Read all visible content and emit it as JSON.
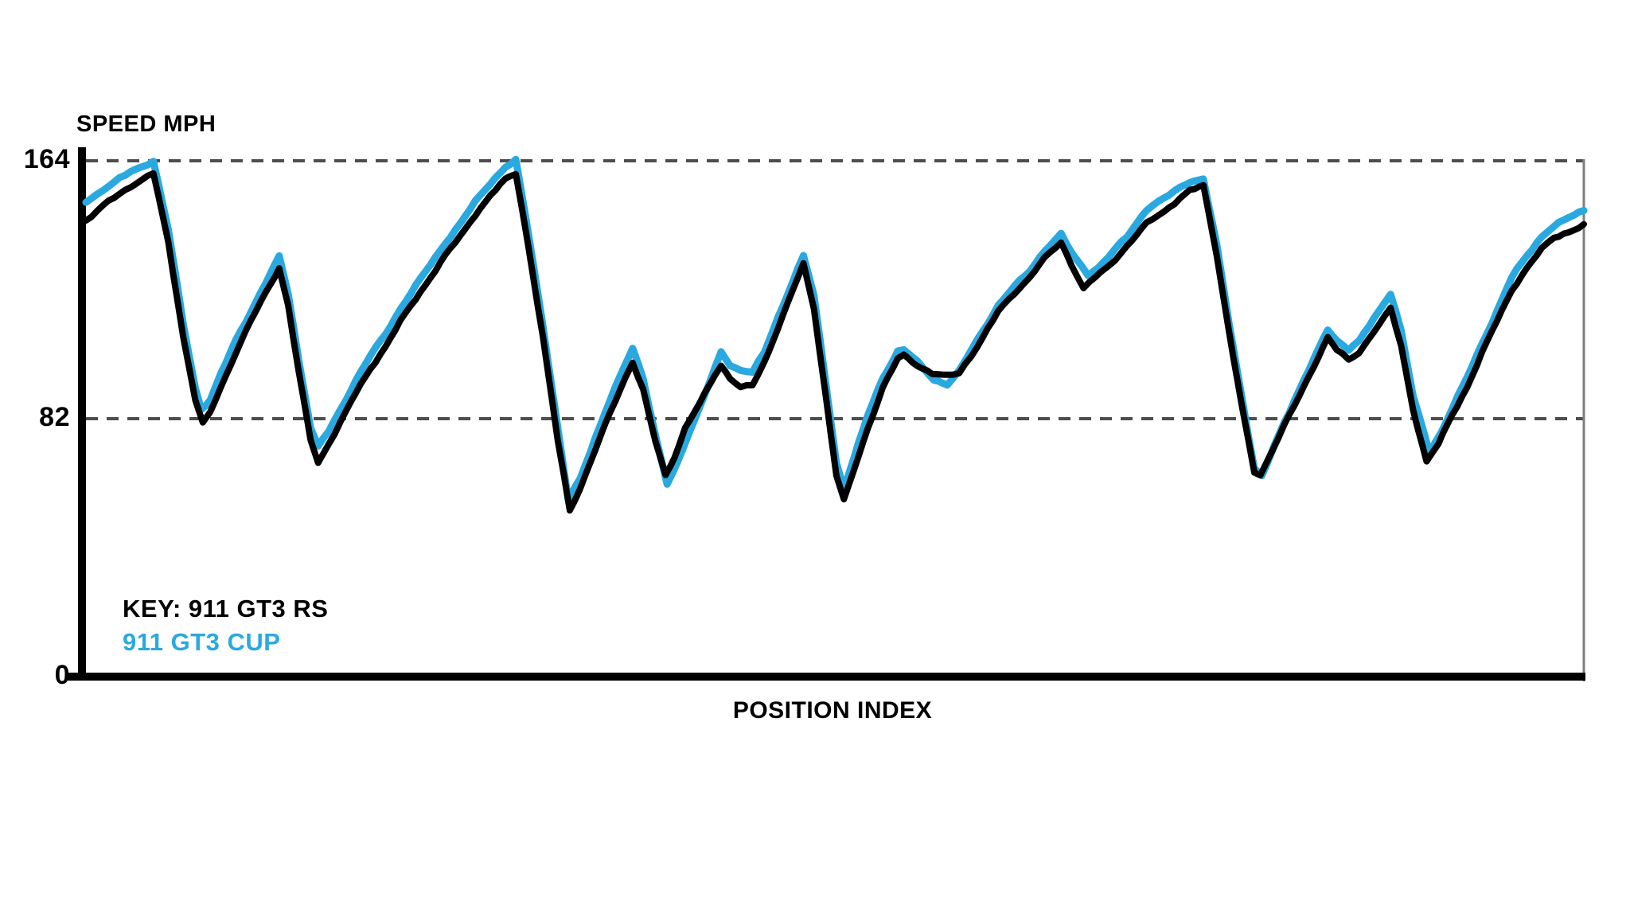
{
  "page": {
    "background": "#ffffff"
  },
  "chart_data": {
    "type": "line",
    "title": "SPEED MPH",
    "ylabel": "SPEED MPH",
    "xlabel": "POSITION INDEX",
    "xlim": [
      0,
      100
    ],
    "ylim": [
      0,
      164
    ],
    "grid": "horizontal dashed gridlines at y=82 and y=164, none vertical",
    "gridline_color": "#4d4d4d",
    "axis_color": "#000000",
    "right_border_color": "#7f7f7f",
    "yticks": [
      {
        "value": 164,
        "label": "164",
        "gridline": true
      },
      {
        "value": 82,
        "label": "82",
        "gridline": true
      },
      {
        "value": 0,
        "label": "0",
        "gridline": false
      }
    ],
    "legend": {
      "position": "inside-bottom-left",
      "line1": "KEY: 911 GT3 RS",
      "line1_color": "#000000",
      "line2": "911 GT3 CUP",
      "line2_color": "#29a9e0"
    },
    "series": [
      {
        "name": "911 GT3 CUP",
        "color": "#29a9e0",
        "width": 9,
        "points": [
          [
            0,
            151
          ],
          [
            1.5,
            156
          ],
          [
            3,
            160.5
          ],
          [
            4.5,
            164
          ],
          [
            5.5,
            142
          ],
          [
            6.5,
            112
          ],
          [
            7.3,
            92
          ],
          [
            7.7,
            85
          ],
          [
            8.3,
            88
          ],
          [
            9,
            96
          ],
          [
            10,
            107
          ],
          [
            11,
            116
          ],
          [
            12,
            125
          ],
          [
            12.9,
            133.5
          ],
          [
            13.5,
            122
          ],
          [
            14.2,
            101
          ],
          [
            15,
            79
          ],
          [
            15.5,
            73
          ],
          [
            16.2,
            78
          ],
          [
            17,
            85
          ],
          [
            18,
            94
          ],
          [
            19,
            102
          ],
          [
            20,
            109
          ],
          [
            21,
            117
          ],
          [
            22,
            124
          ],
          [
            23,
            131
          ],
          [
            24,
            138
          ],
          [
            25,
            144
          ],
          [
            26,
            151
          ],
          [
            27,
            157
          ],
          [
            28,
            162
          ],
          [
            28.7,
            164
          ],
          [
            29.5,
            142
          ],
          [
            30.5,
            112
          ],
          [
            31.5,
            79
          ],
          [
            32.2,
            56
          ],
          [
            33,
            63
          ],
          [
            34,
            76
          ],
          [
            35,
            88
          ],
          [
            36,
            99
          ],
          [
            36.5,
            104.5
          ],
          [
            37.2,
            95
          ],
          [
            38,
            77
          ],
          [
            38.8,
            61
          ],
          [
            39.5,
            68
          ],
          [
            40.2,
            77
          ],
          [
            41,
            86
          ],
          [
            42,
            98
          ],
          [
            42.4,
            103
          ],
          [
            43,
            99
          ],
          [
            43.7,
            97.5
          ],
          [
            44.5,
            97
          ],
          [
            45.3,
            103
          ],
          [
            46.2,
            114
          ],
          [
            47.2,
            126
          ],
          [
            47.9,
            134
          ],
          [
            48.6,
            121
          ],
          [
            49.4,
            93
          ],
          [
            50.1,
            68
          ],
          [
            50.6,
            60
          ],
          [
            51.3,
            70
          ],
          [
            52.2,
            83
          ],
          [
            53.2,
            95
          ],
          [
            54.2,
            103.5
          ],
          [
            54.6,
            104
          ],
          [
            55.5,
            100
          ],
          [
            56.6,
            94.5
          ],
          [
            57.5,
            93
          ],
          [
            58.3,
            97
          ],
          [
            59.5,
            107
          ],
          [
            60.9,
            118
          ],
          [
            62,
            124
          ],
          [
            63,
            129
          ],
          [
            64,
            135.5
          ],
          [
            65.1,
            140.5
          ],
          [
            65.9,
            134
          ],
          [
            66.9,
            128
          ],
          [
            67.6,
            130
          ],
          [
            68.3,
            133.5
          ],
          [
            69.5,
            140
          ],
          [
            70.8,
            148.5
          ],
          [
            72,
            152
          ],
          [
            73,
            155.5
          ],
          [
            73.7,
            157.5
          ],
          [
            74.6,
            158
          ],
          [
            75.5,
            137
          ],
          [
            76.3,
            113
          ],
          [
            77.2,
            88
          ],
          [
            78,
            66
          ],
          [
            78.5,
            63.5
          ],
          [
            79.3,
            73
          ],
          [
            80,
            81
          ],
          [
            81,
            91
          ],
          [
            82,
            101
          ],
          [
            82.9,
            110.5
          ],
          [
            83.5,
            107
          ],
          [
            84.3,
            104
          ],
          [
            85,
            106.5
          ],
          [
            86,
            114
          ],
          [
            87.1,
            122
          ],
          [
            87.8,
            110
          ],
          [
            88.6,
            89
          ],
          [
            89.7,
            71.5
          ],
          [
            90.5,
            78
          ],
          [
            91.3,
            86
          ],
          [
            92.2,
            95
          ],
          [
            93.2,
            106
          ],
          [
            94.2,
            116
          ],
          [
            95.2,
            127
          ],
          [
            96.2,
            134
          ],
          [
            97.2,
            140
          ],
          [
            98,
            143
          ],
          [
            99,
            146
          ],
          [
            100,
            148.5
          ]
        ]
      },
      {
        "name": "911 GT3 RS",
        "color": "#000000",
        "width": 8,
        "points": [
          [
            0,
            145
          ],
          [
            1.5,
            151
          ],
          [
            3,
            156
          ],
          [
            4.5,
            160
          ],
          [
            5.5,
            138
          ],
          [
            6.5,
            108
          ],
          [
            7.3,
            88
          ],
          [
            7.8,
            80.5
          ],
          [
            8.3,
            84
          ],
          [
            9,
            92
          ],
          [
            10,
            103
          ],
          [
            11,
            113
          ],
          [
            12,
            122
          ],
          [
            12.9,
            130
          ],
          [
            13.5,
            118
          ],
          [
            14.2,
            97
          ],
          [
            15,
            75
          ],
          [
            15.5,
            68
          ],
          [
            16.2,
            74
          ],
          [
            17,
            81
          ],
          [
            18,
            90
          ],
          [
            19,
            98
          ],
          [
            20,
            105
          ],
          [
            21,
            113
          ],
          [
            22,
            120
          ],
          [
            23,
            127
          ],
          [
            24,
            134
          ],
          [
            25,
            140
          ],
          [
            26,
            147
          ],
          [
            27,
            153
          ],
          [
            28,
            158
          ],
          [
            28.7,
            160
          ],
          [
            29.5,
            138
          ],
          [
            30.5,
            108
          ],
          [
            31.5,
            75
          ],
          [
            32.3,
            53
          ],
          [
            33,
            60
          ],
          [
            34,
            72
          ],
          [
            35,
            84
          ],
          [
            36,
            95
          ],
          [
            36.5,
            100
          ],
          [
            37.2,
            91
          ],
          [
            38,
            75
          ],
          [
            38.7,
            64
          ],
          [
            39.3,
            70
          ],
          [
            40,
            79
          ],
          [
            41,
            87
          ],
          [
            42,
            96
          ],
          [
            42.4,
            99
          ],
          [
            43,
            95
          ],
          [
            43.7,
            92
          ],
          [
            44.5,
            92.5
          ],
          [
            45.3,
            100
          ],
          [
            46.2,
            111
          ],
          [
            47.2,
            123
          ],
          [
            47.9,
            131
          ],
          [
            48.6,
            117
          ],
          [
            49.4,
            89
          ],
          [
            50.1,
            64
          ],
          [
            50.6,
            56
          ],
          [
            51.3,
            66
          ],
          [
            52.2,
            79
          ],
          [
            53.2,
            92
          ],
          [
            54.2,
            101
          ],
          [
            54.6,
            102
          ],
          [
            55.5,
            99
          ],
          [
            56.5,
            96.5
          ],
          [
            57.5,
            95.5
          ],
          [
            58.3,
            96.5
          ],
          [
            59.5,
            105
          ],
          [
            60.9,
            116
          ],
          [
            62,
            122
          ],
          [
            63,
            127
          ],
          [
            64,
            133
          ],
          [
            65.1,
            138
          ],
          [
            65.8,
            131
          ],
          [
            66.6,
            123.5
          ],
          [
            67.4,
            127
          ],
          [
            68.3,
            130.5
          ],
          [
            69.5,
            137
          ],
          [
            70.8,
            144
          ],
          [
            72,
            148
          ],
          [
            73,
            152
          ],
          [
            73.7,
            154.5
          ],
          [
            74.6,
            156
          ],
          [
            75.5,
            134
          ],
          [
            76.3,
            110
          ],
          [
            77.2,
            85
          ],
          [
            78,
            65
          ],
          [
            78.4,
            64
          ],
          [
            79.2,
            72
          ],
          [
            80,
            80
          ],
          [
            81,
            89
          ],
          [
            82,
            99
          ],
          [
            82.9,
            108
          ],
          [
            83.5,
            104
          ],
          [
            84.3,
            100.5
          ],
          [
            85,
            103
          ],
          [
            86,
            110
          ],
          [
            87.1,
            117
          ],
          [
            87.8,
            105
          ],
          [
            88.6,
            85
          ],
          [
            89.5,
            68.5
          ],
          [
            90.3,
            74
          ],
          [
            91.2,
            83
          ],
          [
            92.2,
            92
          ],
          [
            93.2,
            103
          ],
          [
            94.2,
            113
          ],
          [
            95.2,
            123
          ],
          [
            96.2,
            130
          ],
          [
            97.2,
            136
          ],
          [
            98,
            139.5
          ],
          [
            99,
            141.5
          ],
          [
            100,
            143.5
          ]
        ]
      }
    ]
  }
}
